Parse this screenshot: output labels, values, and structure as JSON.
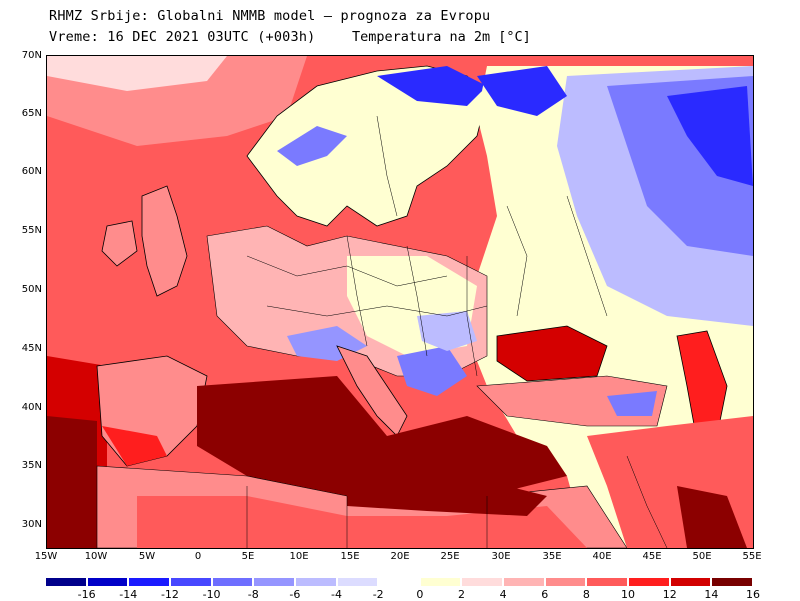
{
  "header": {
    "line1": "RHMZ Srbije: Globalni NMMB model — prognoza za Evropu",
    "line2": "Vreme: 16 DEC 2021 03UTC (+003h)",
    "line3": "Temperatura na 2m [°C]"
  },
  "axes": {
    "lat_labels": [
      "70N",
      "65N",
      "60N",
      "55N",
      "50N",
      "45N",
      "40N",
      "35N",
      "30N"
    ],
    "lon_labels": [
      "15W",
      "10W",
      "5W",
      "0",
      "5E",
      "10E",
      "15E",
      "20E",
      "25E",
      "30E",
      "35E",
      "40E",
      "45E",
      "50E",
      "55E"
    ]
  },
  "colorbar": {
    "labels": [
      "-16",
      "-14",
      "-12",
      "-10",
      "-8",
      "-6",
      "-4",
      "-2",
      "0",
      "2",
      "4",
      "6",
      "8",
      "10",
      "12",
      "14",
      "16"
    ],
    "colors": [
      "#00008b",
      "#0000c8",
      "#1a1aff",
      "#4747ff",
      "#6e6eff",
      "#9595ff",
      "#bcbcff",
      "#dcdcff",
      "#ffffff",
      "#ffffd2",
      "#ffdcdc",
      "#ffb4b4",
      "#ff8c8c",
      "#ff5a5a",
      "#ff1e1e",
      "#d20000",
      "#780000"
    ]
  },
  "map": {
    "colors": {
      "ocean_warm": "#ff4a4a",
      "ocean_hot": "#d40000",
      "med": "#8c0000",
      "land_mild": "#ffb4b4",
      "land_neutral": "#ffffd2",
      "cold_light": "#bcbcff",
      "cold_mid": "#7a7aff",
      "cold_deep": "#2a2aff",
      "border": "#000000"
    }
  }
}
